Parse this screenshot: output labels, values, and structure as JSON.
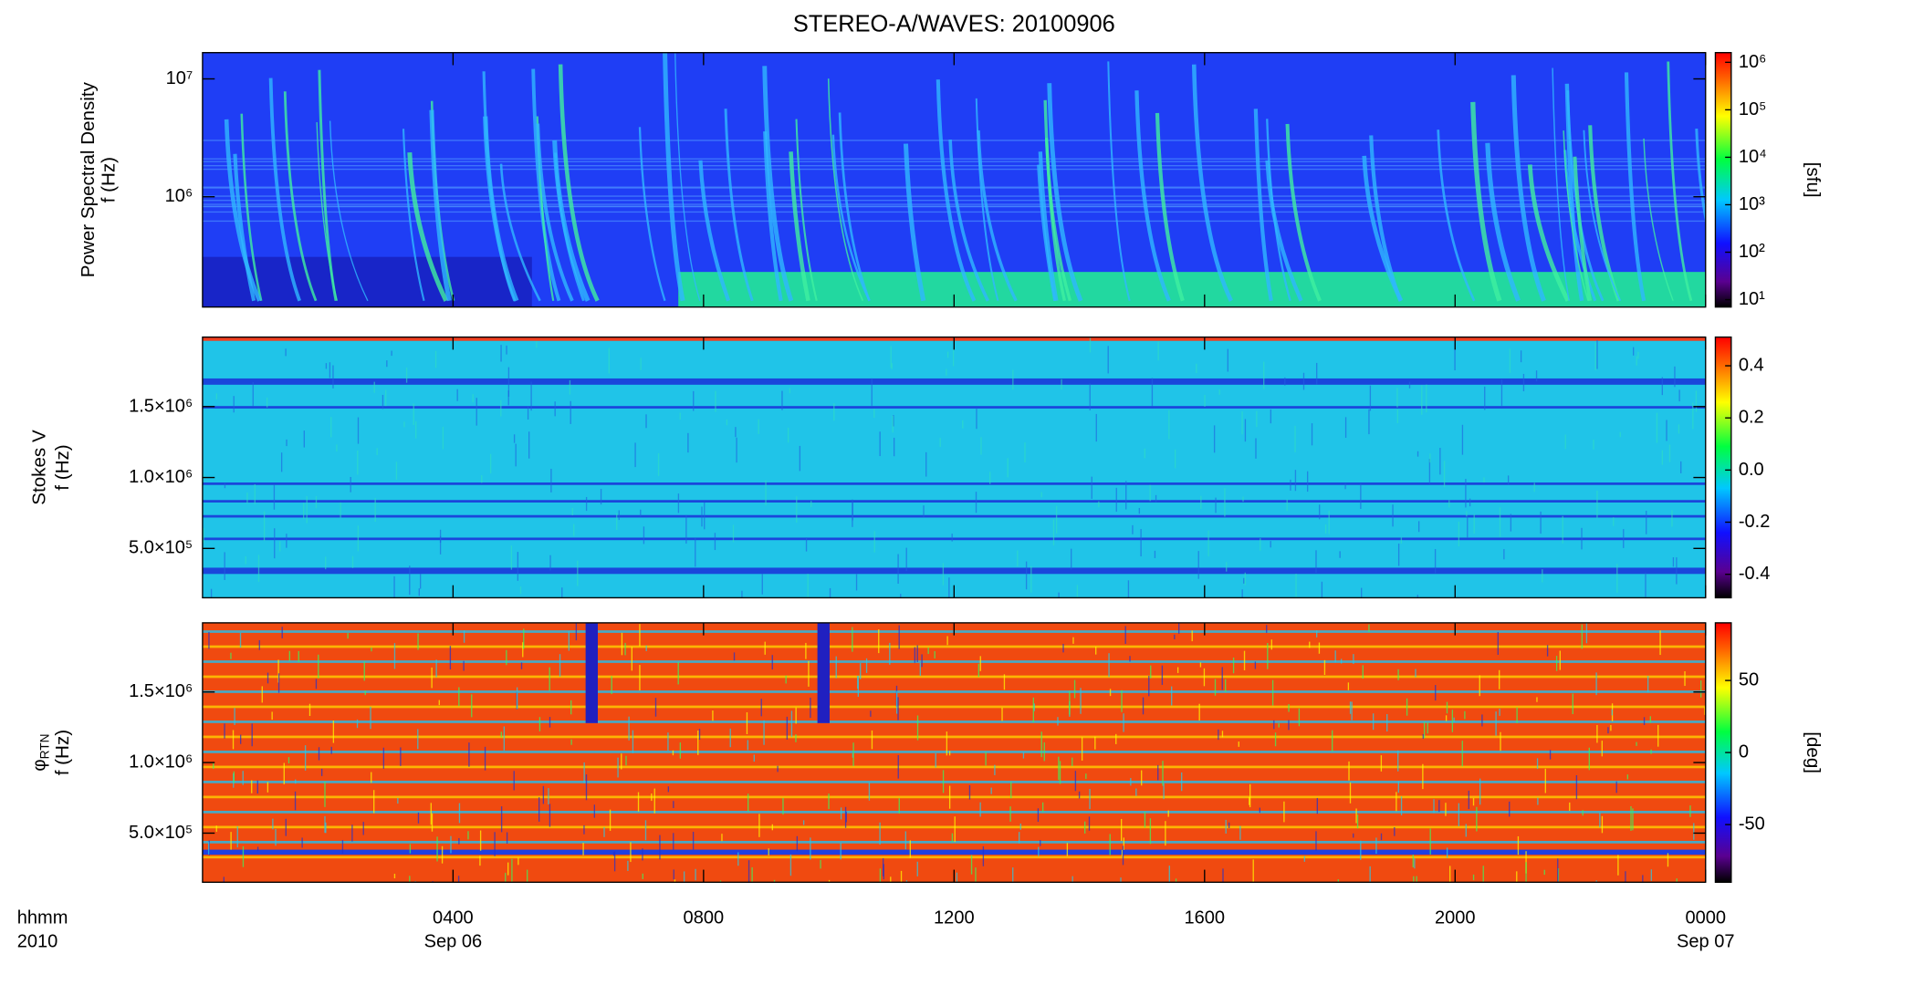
{
  "chart_data": [
    {
      "type": "spectrogram",
      "title": "STEREO-A/WAVES: 20100906",
      "ylabel": [
        "Power Spectral Density",
        "f (Hz)"
      ],
      "ylog": true,
      "ylim": [
        116000,
        16700000
      ],
      "yticks": [
        {
          "value": 1000000,
          "label": "10⁶"
        },
        {
          "value": 10000000,
          "label": "10⁷"
        }
      ],
      "colorbar": {
        "label": "[sfu]",
        "log": true,
        "lim": [
          7,
          1600000
        ],
        "ticks": [
          {
            "value": 10,
            "label": "10¹"
          },
          {
            "value": 100,
            "label": "10²"
          },
          {
            "value": 1000,
            "label": "10³"
          },
          {
            "value": 10000,
            "label": "10⁴"
          },
          {
            "value": 100000,
            "label": "10⁵"
          },
          {
            "value": 1000000,
            "label": "10⁶"
          }
        ]
      }
    },
    {
      "type": "spectrogram",
      "ylabel": [
        "Stokes V",
        "f (Hz)"
      ],
      "ylog": false,
      "ylim": [
        152000,
        1990000
      ],
      "yticks": [
        {
          "value": 500000,
          "label": "5.0×10⁵"
        },
        {
          "value": 1000000,
          "label": "1.0×10⁶"
        },
        {
          "value": 1500000,
          "label": "1.5×10⁶"
        }
      ],
      "colorbar": {
        "log": false,
        "lim": [
          -0.49,
          0.51
        ],
        "ticks": [
          -0.4,
          -0.2,
          {
            "value": 0,
            "label": "0.0"
          },
          0.2,
          0.4
        ]
      }
    },
    {
      "type": "spectrogram",
      "ylabel": [
        "φ",
        "f (Hz)"
      ],
      "ylabel_subscript": "RTN",
      "ylog": false,
      "ylim": [
        152000,
        1990000
      ],
      "yticks": [
        {
          "value": 500000,
          "label": "5.0×10⁵"
        },
        {
          "value": 1000000,
          "label": "1.0×10⁶"
        },
        {
          "value": 1500000,
          "label": "1.5×10⁶"
        }
      ],
      "colorbar": {
        "label": "[deg]",
        "log": false,
        "lim": [
          -90,
          90
        ],
        "ticks": [
          -50,
          0,
          50
        ]
      },
      "xlim": [
        0,
        24
      ],
      "xticks": [
        {
          "value": 4,
          "label": "0400"
        },
        {
          "value": 8,
          "label": "0800"
        },
        {
          "value": 12,
          "label": "1200"
        },
        {
          "value": 16,
          "label": "1600"
        },
        {
          "value": 20,
          "label": "2000"
        },
        {
          "value": 24,
          "label": "0000"
        }
      ],
      "date_labels": [
        {
          "value": 4,
          "label": "Sep 06"
        },
        {
          "value": 24,
          "label": "Sep 07"
        }
      ],
      "xaxis_label": [
        "hhmm",
        "2010"
      ]
    }
  ]
}
